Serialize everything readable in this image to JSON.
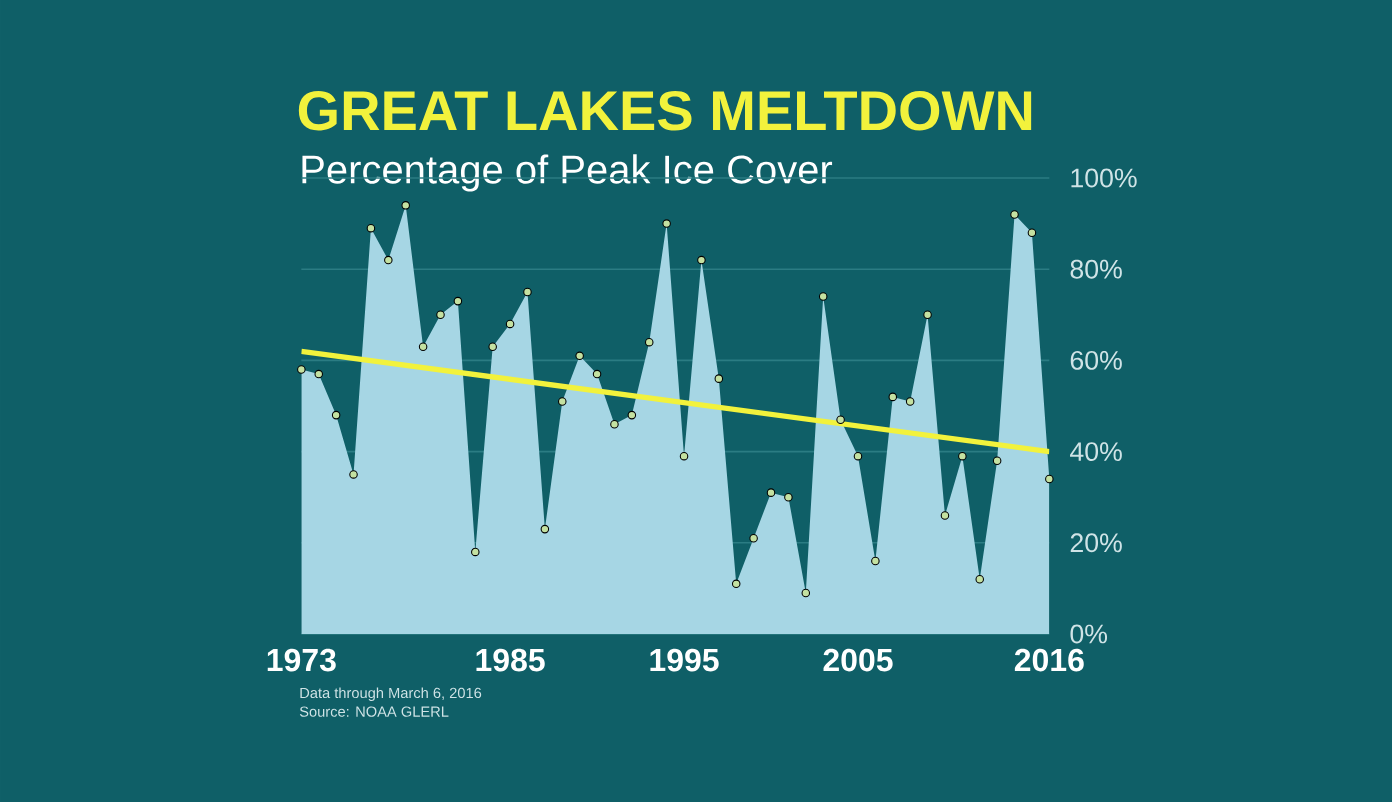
{
  "chart_data": {
    "type": "area",
    "title": "GREAT LAKES MELTDOWN",
    "subtitle": "Percentage of Peak Ice Cover",
    "x": [
      1973,
      1974,
      1975,
      1976,
      1977,
      1978,
      1979,
      1980,
      1981,
      1982,
      1983,
      1984,
      1985,
      1986,
      1987,
      1988,
      1989,
      1990,
      1991,
      1992,
      1993,
      1994,
      1995,
      1996,
      1997,
      1998,
      1999,
      2000,
      2001,
      2002,
      2003,
      2004,
      2005,
      2006,
      2007,
      2008,
      2009,
      2010,
      2011,
      2012,
      2013,
      2014,
      2015,
      2016
    ],
    "series": [
      {
        "color": "#a6d6e4",
        "marker": "circle",
        "values": [
          58,
          57,
          48,
          35,
          89,
          82,
          94,
          63,
          70,
          73,
          18,
          63,
          68,
          75,
          23,
          51,
          61,
          57,
          46,
          48,
          64,
          90,
          39,
          82,
          56,
          11,
          21,
          31,
          30,
          9,
          74,
          47,
          39,
          16,
          52,
          51,
          70,
          26,
          39,
          12,
          38,
          92,
          88,
          34
        ]
      },
      {
        "type": "line",
        "color": "#f2f23c",
        "x": [
          1973,
          2016
        ],
        "values": [
          62,
          40
        ]
      }
    ],
    "xlim": [
      1973,
      2016
    ],
    "ylim": [
      0,
      100
    ],
    "xticks": [
      1973,
      1985,
      1995,
      2005,
      2016
    ],
    "yticks": [
      {
        "value": 0,
        "label": "0%"
      },
      {
        "value": 20,
        "label": "20%"
      },
      {
        "value": 40,
        "label": "40%"
      },
      {
        "value": 60,
        "label": "60%"
      },
      {
        "value": 80,
        "label": "80%"
      },
      {
        "value": 100,
        "label": "100%"
      }
    ],
    "grid": "y",
    "annotations": [
      "Data through March 6, 2016",
      "Source: NOAA GLERL"
    ]
  }
}
